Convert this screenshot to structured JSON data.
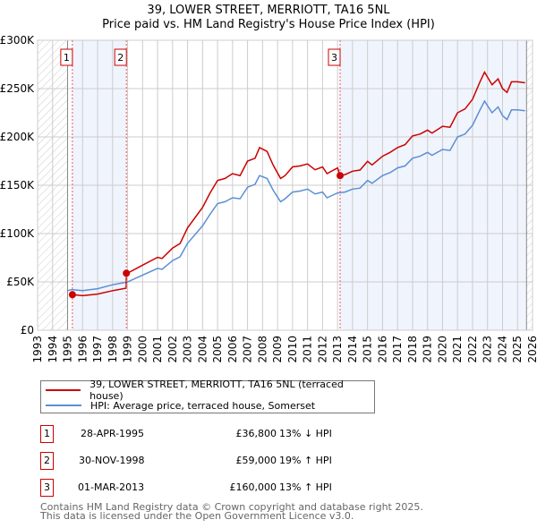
{
  "title": "39, LOWER STREET, MERRIOTT, TA16 5NL",
  "subtitle": "Price paid vs. HM Land Registry's House Price Index (HPI)",
  "chart_data": {
    "type": "line",
    "title": "39, LOWER STREET, MERRIOTT, TA16 5NL — Price paid vs. HM Land Registry's House Price Index (HPI)",
    "xlim": [
      1993,
      2026
    ],
    "ylim": [
      0,
      300000
    ],
    "y_ticks": [
      {
        "v": 0,
        "label": "£0"
      },
      {
        "v": 50000,
        "label": "£50K"
      },
      {
        "v": 100000,
        "label": "£100K"
      },
      {
        "v": 150000,
        "label": "£150K"
      },
      {
        "v": 200000,
        "label": "£200K"
      },
      {
        "v": 250000,
        "label": "£250K"
      },
      {
        "v": 300000,
        "label": "£300K"
      }
    ],
    "x_ticks": [
      "1993",
      "1994",
      "1995",
      "1996",
      "1997",
      "1998",
      "1999",
      "2000",
      "2001",
      "2002",
      "2003",
      "2004",
      "2005",
      "2006",
      "2007",
      "2008",
      "2009",
      "2010",
      "2011",
      "2012",
      "2013",
      "2014",
      "2015",
      "2016",
      "2017",
      "2018",
      "2019",
      "2020",
      "2021",
      "2022",
      "2023",
      "2024",
      "2025",
      "2026"
    ],
    "grid": true,
    "series": [
      {
        "name": "39, LOWER STREET, MERRIOTT, TA16 5NL (terraced house)",
        "color": "#cc0000",
        "x": [
          1995.32,
          1996,
          1997,
          1998,
          1998.9,
          1998.92,
          1999,
          2000,
          2001,
          2001.3,
          2002,
          2002.5,
          2003,
          2004,
          2004.5,
          2005,
          2005.5,
          2006,
          2006.5,
          2007,
          2007.5,
          2007.8,
          2008.3,
          2008.7,
          2009.2,
          2009.5,
          2010,
          2010.5,
          2011,
          2011.5,
          2012,
          2012.3,
          2013,
          2013.17,
          2013.5,
          2014,
          2014.5,
          2015,
          2015.3,
          2016,
          2016.5,
          2017,
          2017.5,
          2018,
          2018.5,
          2019,
          2019.3,
          2020,
          2020.5,
          2021,
          2021.5,
          2022,
          2022.5,
          2022.8,
          2023.3,
          2023.7,
          2024,
          2024.3,
          2024.6,
          2025,
          2025.5
        ],
        "y": [
          36800,
          35700,
          37400,
          40900,
          43500,
          59000,
          59000,
          67300,
          75500,
          74300,
          85000,
          89700,
          106000,
          127000,
          142000,
          155000,
          157000,
          162000,
          160000,
          175000,
          178000,
          189000,
          185000,
          171000,
          157000,
          160000,
          169000,
          170000,
          172000,
          166000,
          169000,
          162000,
          168000,
          160000,
          161000,
          164500,
          165700,
          174700,
          171000,
          180000,
          184000,
          189000,
          192000,
          201000,
          203000,
          207000,
          204000,
          211000,
          210000,
          225000,
          229000,
          239000,
          257000,
          267000,
          254000,
          260000,
          250000,
          246000,
          257000,
          257000,
          256000
        ]
      },
      {
        "name": "HPI: Average price, terraced house, Somerset",
        "color": "#5b8fd4",
        "x": [
          1995.0,
          1995.3,
          1996,
          1997,
          1998,
          1999,
          2000,
          2001,
          2001.3,
          2002,
          2002.5,
          2003,
          2004,
          2004.5,
          2005,
          2005.5,
          2006,
          2006.5,
          2007,
          2007.5,
          2007.8,
          2008.3,
          2008.7,
          2009.2,
          2009.5,
          2010,
          2010.5,
          2011,
          2011.5,
          2012,
          2012.3,
          2013,
          2013.5,
          2014,
          2014.5,
          2015,
          2015.3,
          2016,
          2016.5,
          2017,
          2017.5,
          2018,
          2018.5,
          2019,
          2019.3,
          2020,
          2020.5,
          2021,
          2021.5,
          2022,
          2022.5,
          2022.8,
          2023.3,
          2023.7,
          2024,
          2024.3,
          2024.6,
          2025,
          2025.5
        ],
        "y": [
          41000,
          42000,
          41000,
          43000,
          47000,
          50000,
          57000,
          64000,
          63000,
          72000,
          76000,
          90000,
          108000,
          120000,
          131000,
          133000,
          137000,
          136000,
          148000,
          151000,
          160000,
          157000,
          145000,
          133000,
          136000,
          143000,
          144000,
          146000,
          141000,
          143000,
          137000,
          142000,
          143000,
          146000,
          147000,
          155000,
          152000,
          160000,
          163000,
          168000,
          170000,
          178000,
          180000,
          184000,
          181000,
          187000,
          186000,
          200000,
          203000,
          212000,
          228000,
          237000,
          225000,
          231000,
          222000,
          218000,
          228000,
          228000,
          227000
        ]
      }
    ],
    "sales": [
      {
        "id": "1",
        "x": 1995.32,
        "price": 36800,
        "date": "28-APR-1995",
        "price_label": "£36,800",
        "hpi": "13% ↓ HPI"
      },
      {
        "id": "2",
        "x": 1998.92,
        "price": 59000,
        "date": "30-NOV-1998",
        "price_label": "£59,000",
        "hpi": "19% ↑ HPI"
      },
      {
        "id": "3",
        "x": 2013.17,
        "price": 160000,
        "date": "01-MAR-2013",
        "price_label": "£160,000",
        "hpi": "13% ↑ HPI"
      }
    ],
    "shaded_ranges": [
      [
        1995.32,
        1998.92
      ],
      [
        2013.17,
        2025.6
      ]
    ],
    "hatched_ranges": [
      [
        1993,
        1995.0
      ],
      [
        2025.6,
        2026
      ]
    ],
    "legend_position": "below"
  },
  "footer": [
    "Contains HM Land Registry data © Crown copyright and database right 2025.",
    "This data is licensed under the Open Government Licence v3.0."
  ]
}
